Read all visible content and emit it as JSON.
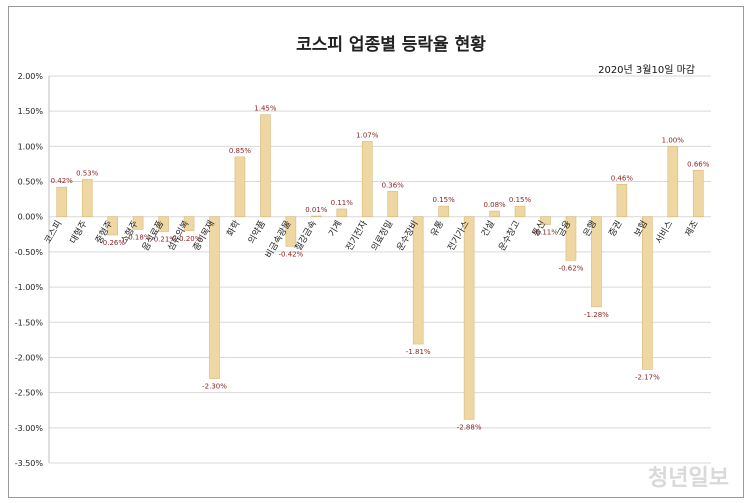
{
  "chart_data": {
    "type": "bar",
    "title": "코스피 업종별 등락율 현황",
    "subtitle": "2020년 3월10일 마감",
    "watermark": "청년일보",
    "xlabel": "",
    "ylabel": "",
    "ylim": [
      -3.5,
      2.0
    ],
    "yticks": [
      "2.00%",
      "1.50%",
      "1.00%",
      "0.50%",
      "0.00%",
      "-0.50%",
      "-1.00%",
      "-1.50%",
      "-2.00%",
      "-2.50%",
      "-3.00%",
      "-3.50%"
    ],
    "grid": true,
    "legend": "none",
    "categories": [
      "코스피",
      "대형주",
      "중형주",
      "소형주",
      "음식료품",
      "섬유의복",
      "종이목재",
      "화학",
      "의약품",
      "비금속광물",
      "철강금속",
      "기계",
      "전기전자",
      "의료정밀",
      "운수장비",
      "유통",
      "전기가스",
      "건설",
      "운수창고",
      "통신",
      "금융",
      "은행",
      "증권",
      "보험",
      "서비스",
      "제조"
    ],
    "values": [
      0.42,
      0.53,
      -0.26,
      -0.18,
      -0.21,
      -0.2,
      -2.3,
      0.85,
      1.45,
      -0.42,
      0.01,
      0.11,
      1.07,
      0.36,
      -1.81,
      0.15,
      -2.88,
      0.08,
      0.15,
      -0.11,
      -0.62,
      -1.28,
      0.46,
      -2.17,
      1.0,
      0.66
    ],
    "value_labels": [
      "0.42%",
      "0.53%",
      "-0.26%",
      "-0.18%",
      "-0.21%",
      "-0.20%",
      "-2.30%",
      "0.85%",
      "1.45%",
      "-0.42%",
      "0.01%",
      "0.11%",
      "1.07%",
      "0.36%",
      "-1.81%",
      "0.15%",
      "-2.88%",
      "0.08%",
      "0.15%",
      "-0.11%",
      "-0.62%",
      "-1.28%",
      "0.46%",
      "-2.17%",
      "1.00%",
      "0.66%"
    ],
    "colors": {
      "bar": "#efd7a4",
      "bar_edge": "#d7b978",
      "grid": "#d9d9d9",
      "label": "#8a1f1f"
    }
  }
}
